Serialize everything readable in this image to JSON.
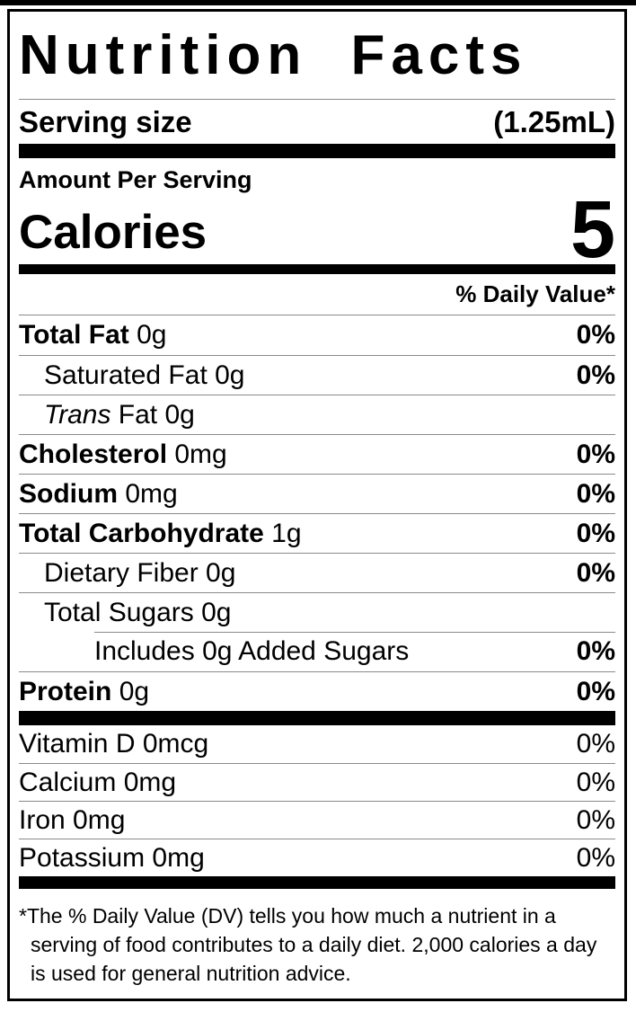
{
  "label": {
    "title": "Nutrition Facts",
    "serving": {
      "label": "Serving size",
      "value": "(1.25mL)"
    },
    "amount_per_serving": "Amount Per Serving",
    "calories": {
      "label": "Calories",
      "value": "5"
    },
    "daily_value_header": "% Daily Value*",
    "nutrients": [
      {
        "name": "Total Fat",
        "amount": "0g",
        "dv": "0%",
        "style": "bold",
        "indent": 0
      },
      {
        "name": "Saturated Fat",
        "amount": "0g",
        "dv": "0%",
        "style": "regular",
        "indent": 1
      },
      {
        "name": "Fat",
        "italic_prefix": "Trans",
        "amount": "0g",
        "dv": "",
        "style": "regular",
        "indent": 1
      },
      {
        "name": "Cholesterol",
        "amount": "0mg",
        "dv": "0%",
        "style": "bold",
        "indent": 0
      },
      {
        "name": "Sodium",
        "amount": "0mg",
        "dv": "0%",
        "style": "bold",
        "indent": 0
      },
      {
        "name": "Total Carbohydrate",
        "amount": "1g",
        "dv": "0%",
        "style": "bold",
        "indent": 0
      },
      {
        "name": "Dietary Fiber",
        "amount": "0g",
        "dv": "0%",
        "style": "regular",
        "indent": 1
      },
      {
        "name": "Total Sugars",
        "amount": "0g",
        "dv": "",
        "style": "regular",
        "indent": 1
      },
      {
        "name": "Includes 0g Added Sugars",
        "amount": "",
        "dv": "0%",
        "style": "regular",
        "indent": 2
      },
      {
        "name": "Protein",
        "amount": "0g",
        "dv": "0%",
        "style": "bold",
        "indent": 0
      }
    ],
    "micronutrients": [
      {
        "name": "Vitamin D",
        "amount": "0mcg",
        "dv": "0%"
      },
      {
        "name": "Calcium",
        "amount": "0mg",
        "dv": "0%"
      },
      {
        "name": "Iron",
        "amount": "0mg",
        "dv": "0%"
      },
      {
        "name": "Potassium",
        "amount": "0mg",
        "dv": "0%"
      }
    ],
    "footnote": {
      "marker": "*",
      "text": "The % Daily Value (DV) tells you how much a nutrient in a serving of food contributes to a daily diet. 2,000 calories a day is used for general nutrition advice."
    },
    "colors": {
      "text": "#000000",
      "background": "#ffffff",
      "separator": "#8a8a8a",
      "border": "#000000"
    }
  }
}
